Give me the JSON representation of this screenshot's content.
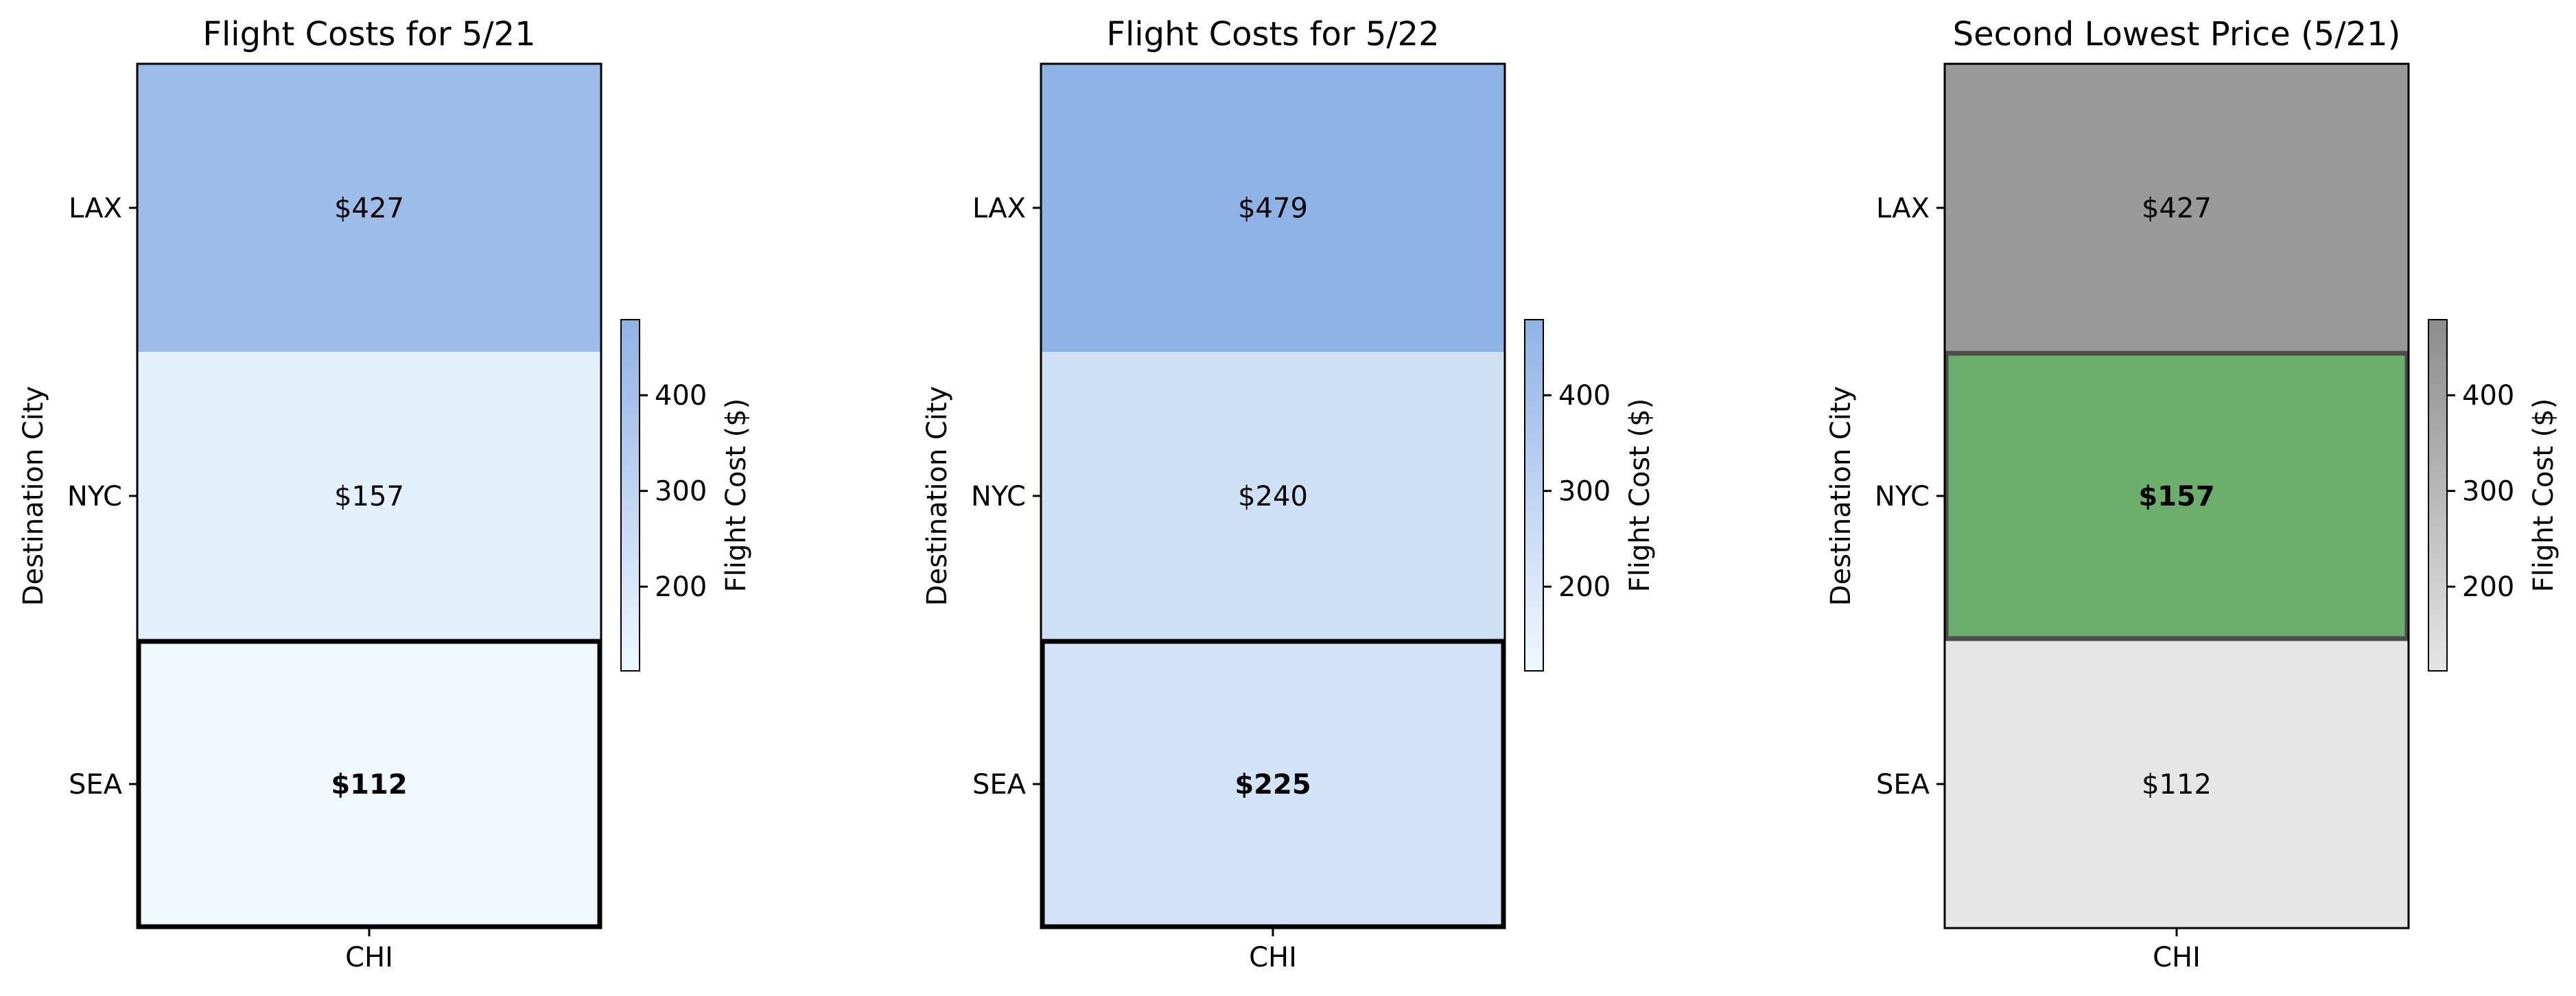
{
  "chart_data": [
    {
      "type": "heatmap",
      "title": "Flight Costs for 5/21",
      "xlabel": "",
      "ylabel": "Destination City",
      "x_categories": [
        "CHI"
      ],
      "y_categories": [
        "LAX",
        "NYC",
        "SEA"
      ],
      "values": [
        427,
        157,
        112
      ],
      "cell_labels": [
        "$427",
        "$157",
        "$112"
      ],
      "highlight": "SEA",
      "colormap": [
        "#f0f8ff",
        "#8fb2e6"
      ],
      "colorbar": {
        "label": "Flight Cost ($)",
        "range": [
          112,
          479
        ],
        "ticks": [
          "200",
          "300",
          "400"
        ]
      }
    },
    {
      "type": "heatmap",
      "title": "Flight Costs for 5/22",
      "xlabel": "",
      "ylabel": "Destination City",
      "x_categories": [
        "CHI"
      ],
      "y_categories": [
        "LAX",
        "NYC",
        "SEA"
      ],
      "values": [
        479,
        240,
        225
      ],
      "cell_labels": [
        "$479",
        "$240",
        "$225"
      ],
      "highlight": "SEA",
      "colormap": [
        "#f0f8ff",
        "#8fb2e6"
      ],
      "colorbar": {
        "label": "Flight Cost ($)",
        "range": [
          112,
          479
        ],
        "ticks": [
          "200",
          "300",
          "400"
        ]
      }
    },
    {
      "type": "heatmap",
      "title": "Second Lowest Price (5/21)",
      "xlabel": "",
      "ylabel": "Destination City",
      "x_categories": [
        "CHI"
      ],
      "y_categories": [
        "LAX",
        "NYC",
        "SEA"
      ],
      "values": [
        427,
        157,
        112
      ],
      "cell_labels": [
        "$427",
        "$157",
        "$112"
      ],
      "highlight": "NYC",
      "highlight_color": "#6caf6c",
      "colormap": [
        "#e5e5e5",
        "#8c8c8c"
      ],
      "colorbar": {
        "label": "Flight Cost ($)",
        "range": [
          112,
          479
        ],
        "ticks": [
          "200",
          "300",
          "400"
        ]
      }
    }
  ]
}
